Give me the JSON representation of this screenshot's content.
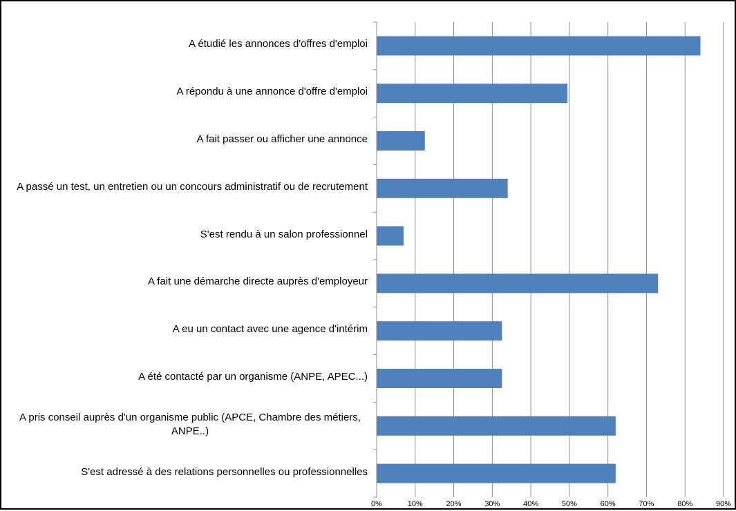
{
  "chart_data": {
    "type": "bar",
    "orientation": "horizontal",
    "categories": [
      "A étudié les annonces d'offres d'emploi",
      "A répondu à une annonce d'offre d'emploi",
      "A fait passer ou afficher une annonce",
      "A passé un test, un entretien ou un concours administratif ou de recrutement",
      "S'est rendu à un salon professionnel",
      "A fait une démarche directe auprès d'employeur",
      "A eu un contact avec une agence d'intérim",
      "A été contacté par un organisme (ANPE, APEC...)",
      "A pris conseil auprès d'un organisme public (APCE, Chambre des métiers, ANPE..)",
      "S'est adressé à des relations personnelles ou professionnelles"
    ],
    "values": [
      84,
      49.5,
      12.5,
      34,
      7,
      73,
      32.5,
      32.5,
      62,
      62
    ],
    "color": "#4f81bd",
    "xlim": [
      0,
      90
    ],
    "xticks": [
      {
        "value": 0,
        "label": "0%"
      },
      {
        "value": 10,
        "label": "10%"
      },
      {
        "value": 20,
        "label": "20%"
      },
      {
        "value": 30,
        "label": "30%"
      },
      {
        "value": 40,
        "label": "40%"
      },
      {
        "value": 50,
        "label": "50%"
      },
      {
        "value": 60,
        "label": "60%"
      },
      {
        "value": 70,
        "label": "70%"
      },
      {
        "value": 80,
        "label": "80%"
      },
      {
        "value": 90,
        "label": "90%"
      }
    ],
    "grid": true
  }
}
